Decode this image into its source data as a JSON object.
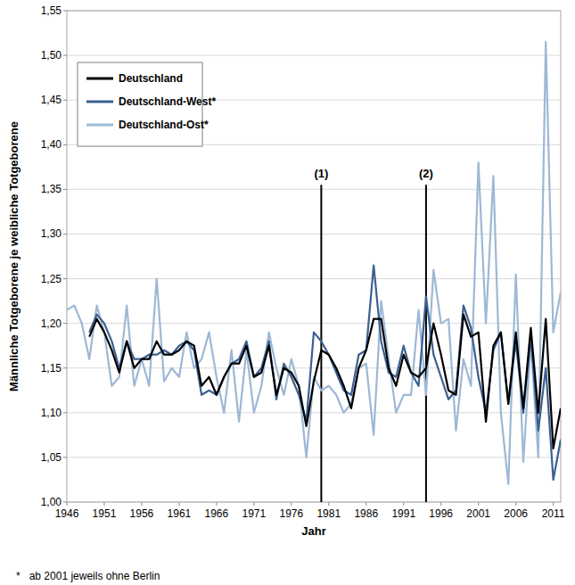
{
  "chart_data": {
    "type": "line",
    "x_label": "Jahr",
    "y_label": "Männliche Totgeborene je weibliche Totgeborene",
    "footnote": "*   ab 2001 jeweils ohne Berlin",
    "xlim": [
      1946,
      2012
    ],
    "xticks": [
      1946,
      1951,
      1956,
      1961,
      1966,
      1971,
      1976,
      1981,
      1986,
      1991,
      1996,
      2001,
      2006,
      2011
    ],
    "ylim": [
      1.0,
      1.55
    ],
    "yticks": [
      {
        "value": 1.0,
        "label": "1,00"
      },
      {
        "value": 1.05,
        "label": "1,05"
      },
      {
        "value": 1.1,
        "label": "1,10"
      },
      {
        "value": 1.15,
        "label": "1,15"
      },
      {
        "value": 1.2,
        "label": "1,20"
      },
      {
        "value": 1.25,
        "label": "1,25"
      },
      {
        "value": 1.3,
        "label": "1,30"
      },
      {
        "value": 1.35,
        "label": "1,35"
      },
      {
        "value": 1.4,
        "label": "1,40"
      },
      {
        "value": 1.45,
        "label": "1,45"
      },
      {
        "value": 1.5,
        "label": "1,50"
      },
      {
        "value": 1.55,
        "label": "1,55"
      }
    ],
    "grid": true,
    "legend": "upper left",
    "x": [
      1946,
      1947,
      1948,
      1949,
      1950,
      1951,
      1952,
      1953,
      1954,
      1955,
      1956,
      1957,
      1958,
      1959,
      1960,
      1961,
      1962,
      1963,
      1964,
      1965,
      1966,
      1967,
      1968,
      1969,
      1970,
      1971,
      1972,
      1973,
      1974,
      1975,
      1976,
      1977,
      1978,
      1979,
      1980,
      1981,
      1982,
      1983,
      1984,
      1985,
      1986,
      1987,
      1988,
      1989,
      1990,
      1991,
      1992,
      1993,
      1994,
      1995,
      1996,
      1997,
      1998,
      1999,
      2000,
      2001,
      2002,
      2003,
      2004,
      2005,
      2006,
      2007,
      2008,
      2009,
      2010,
      2011,
      2012
    ],
    "series": [
      {
        "name": "Deutschland",
        "color": "#000000",
        "values": [
          null,
          null,
          null,
          1.185,
          1.205,
          1.19,
          1.17,
          1.145,
          1.18,
          1.15,
          1.16,
          1.16,
          1.18,
          1.165,
          1.165,
          1.17,
          1.18,
          1.175,
          1.13,
          1.14,
          1.12,
          1.14,
          1.155,
          1.155,
          1.175,
          1.14,
          1.145,
          1.175,
          1.12,
          1.15,
          1.145,
          1.13,
          1.085,
          1.135,
          1.17,
          1.165,
          1.15,
          1.13,
          1.105,
          1.15,
          1.17,
          1.205,
          1.205,
          1.15,
          1.13,
          1.165,
          1.145,
          1.14,
          1.15,
          1.2,
          1.165,
          1.125,
          1.12,
          1.21,
          1.185,
          1.19,
          1.09,
          1.175,
          1.19,
          1.11,
          1.19,
          1.105,
          1.195,
          1.1,
          1.205,
          1.06,
          1.105
        ]
      },
      {
        "name": "Deutschland-West*",
        "color": "#3b6090",
        "values": [
          null,
          null,
          null,
          1.19,
          1.21,
          1.2,
          1.18,
          1.15,
          1.18,
          1.16,
          1.16,
          1.165,
          1.165,
          1.17,
          1.165,
          1.175,
          1.18,
          1.17,
          1.12,
          1.125,
          1.12,
          1.14,
          1.155,
          1.16,
          1.18,
          1.14,
          1.15,
          1.18,
          1.115,
          1.155,
          1.14,
          1.12,
          1.09,
          1.19,
          1.18,
          1.165,
          1.145,
          1.125,
          1.12,
          1.165,
          1.17,
          1.265,
          1.18,
          1.145,
          1.14,
          1.175,
          1.145,
          1.13,
          1.23,
          1.165,
          1.14,
          1.115,
          1.125,
          1.22,
          1.195,
          1.14,
          1.1,
          1.17,
          1.19,
          1.11,
          1.18,
          1.1,
          1.185,
          1.08,
          1.15,
          1.025,
          1.07
        ]
      },
      {
        "name": "Deutschland-Ost*",
        "color": "#9db8d6",
        "values": [
          1.215,
          1.22,
          1.2,
          1.16,
          1.22,
          1.19,
          1.13,
          1.14,
          1.22,
          1.13,
          1.16,
          1.13,
          1.25,
          1.135,
          1.15,
          1.14,
          1.19,
          1.15,
          1.16,
          1.19,
          1.14,
          1.1,
          1.17,
          1.09,
          1.17,
          1.1,
          1.13,
          1.19,
          1.15,
          1.12,
          1.16,
          1.13,
          1.05,
          1.14,
          1.125,
          1.13,
          1.12,
          1.1,
          1.11,
          1.15,
          1.155,
          1.075,
          1.225,
          1.16,
          1.1,
          1.12,
          1.12,
          1.215,
          1.12,
          1.26,
          1.2,
          1.205,
          1.08,
          1.16,
          1.13,
          1.38,
          1.2,
          1.365,
          1.1,
          1.02,
          1.255,
          1.045,
          1.18,
          1.05,
          1.515,
          1.19,
          1.235
        ]
      }
    ],
    "annotations": [
      {
        "text": "(1)",
        "x": 1980,
        "y_top": 1.355
      },
      {
        "text": "(2)",
        "x": 1994,
        "y_top": 1.355
      }
    ]
  }
}
